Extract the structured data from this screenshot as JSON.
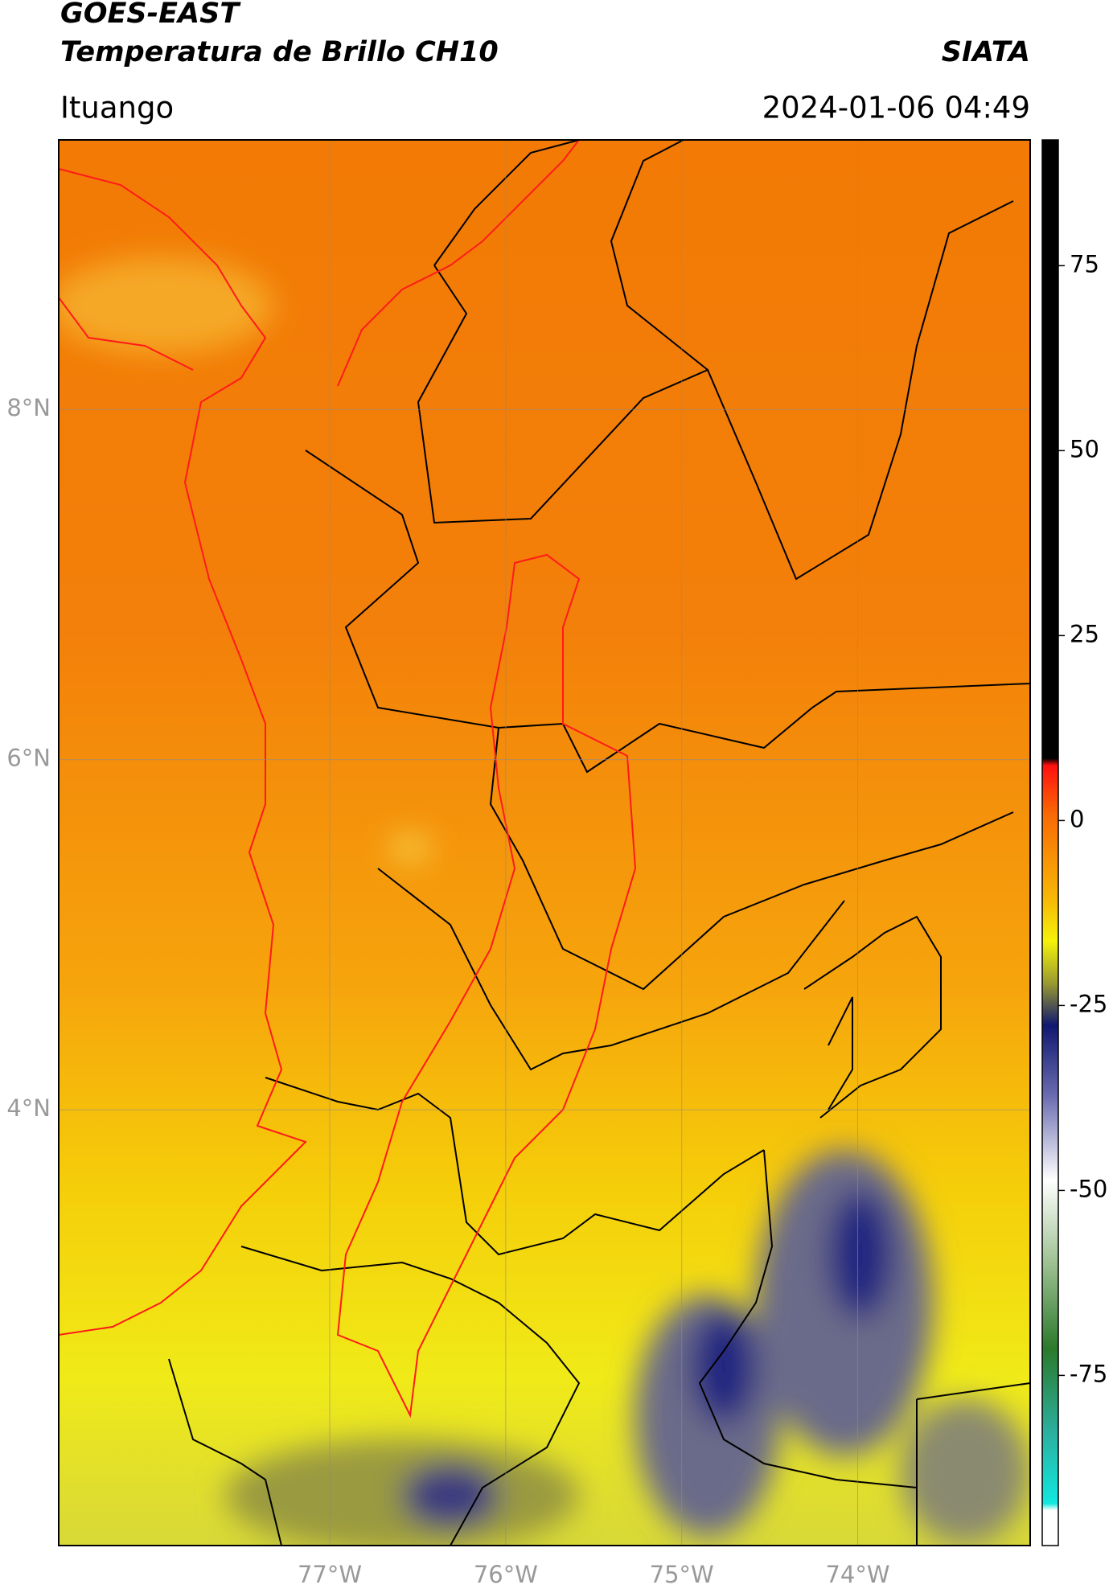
{
  "chart_data": {
    "type": "map",
    "title": "GOES-EAST",
    "subtitle": "Temperatura de Brillo CH10",
    "source": "SIATA",
    "location": "Ituango",
    "datetime": "2024-01-06 04:49",
    "xlim": [
      -78.54,
      -73.02
    ],
    "ylim": [
      1.51,
      9.54
    ],
    "xticks": [
      {
        "value": -77,
        "label": "77°W"
      },
      {
        "value": -76,
        "label": "76°W"
      },
      {
        "value": -75,
        "label": "75°W"
      },
      {
        "value": -74,
        "label": "74°W"
      }
    ],
    "yticks": [
      {
        "value": 8,
        "label": "8°N"
      },
      {
        "value": 6,
        "label": "6°N"
      },
      {
        "value": 4,
        "label": "4°N"
      }
    ],
    "grid": true,
    "colorbar": {
      "clim": [
        -98,
        92
      ],
      "ticks": [
        75,
        50,
        25,
        0,
        -25,
        -50,
        -75
      ]
    }
  }
}
